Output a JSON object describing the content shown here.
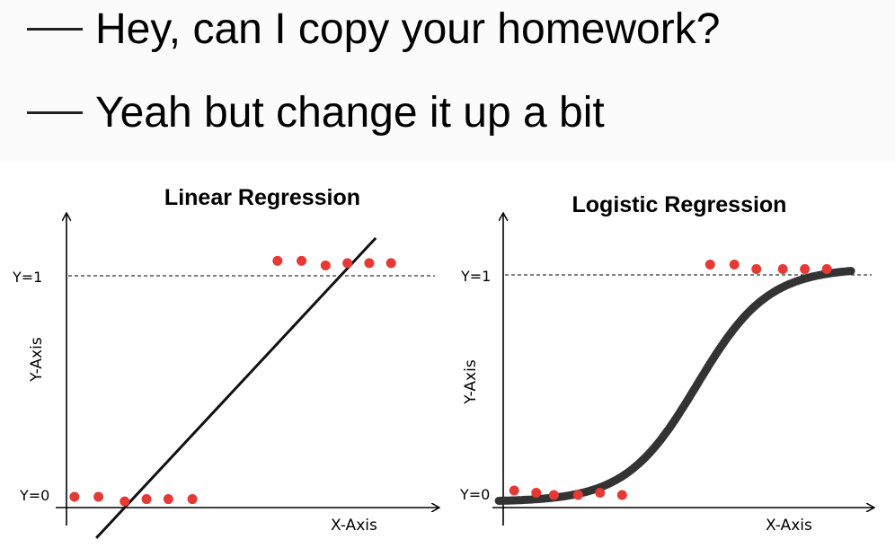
{
  "meme": {
    "line1": "Hey, can I copy your homework?",
    "line2": "Yeah but change it up a bit"
  },
  "colors": {
    "point": "#e53935",
    "fit": "#111111",
    "sigmoid": "#333333"
  },
  "chart_data": [
    {
      "type": "scatter",
      "title": "Linear Regression",
      "xlabel": "X-Axis",
      "ylabel": "Y-Axis",
      "y_ticks": [
        "Y=0",
        "Y=1"
      ],
      "ylim": [
        0,
        1
      ],
      "grid": false,
      "series": [
        {
          "kind": "points",
          "x": [
            0.2,
            1.3,
            2.5,
            3.5,
            4.5,
            5.6,
            9.5,
            10.6,
            11.7,
            12.7,
            13.7,
            14.7
          ],
          "y": [
            0,
            0,
            -0.02,
            -0.01,
            -0.01,
            -0.01,
            1.03,
            1.03,
            1.01,
            1.02,
            1.02,
            1.02
          ]
        },
        {
          "kind": "line",
          "x": [
            1.2,
            14.0
          ],
          "y": [
            -0.18,
            1.13
          ]
        }
      ]
    },
    {
      "type": "scatter",
      "title": "Logistic Regression",
      "xlabel": "X-Axis",
      "ylabel": "Y-Axis",
      "y_ticks": [
        "Y=0",
        "Y=1"
      ],
      "ylim": [
        0,
        1
      ],
      "grid": false,
      "series": [
        {
          "kind": "points",
          "x": [
            0.5,
            1.5,
            2.3,
            3.4,
            4.4,
            5.4,
            9.4,
            10.5,
            11.5,
            12.7,
            13.7,
            14.7
          ],
          "y": [
            0.02,
            0.01,
            0.0,
            0.0,
            0.01,
            0.0,
            1.03,
            1.03,
            1.01,
            1.01,
            1.01,
            1.01
          ]
        },
        {
          "kind": "curve",
          "label": "sigmoid"
        }
      ]
    }
  ]
}
